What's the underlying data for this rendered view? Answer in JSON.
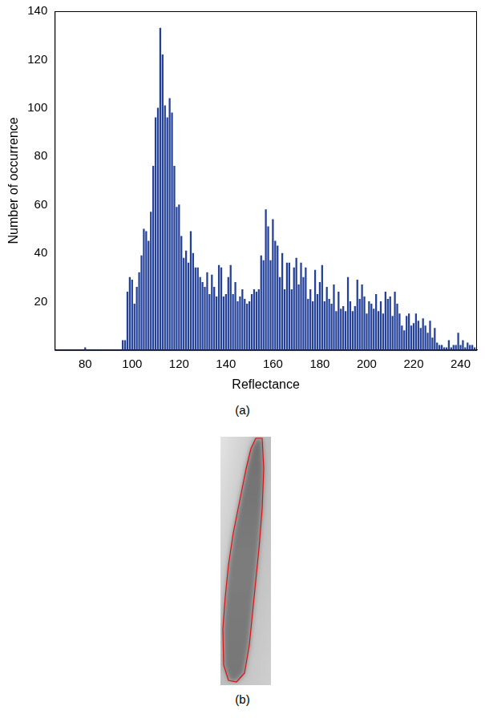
{
  "chart_data": {
    "type": "bar",
    "x_label": "Reflectance",
    "y_label": "Number of occurrence",
    "x": [
      67,
      68,
      69,
      70,
      71,
      72,
      73,
      74,
      75,
      76,
      77,
      78,
      79,
      80,
      81,
      82,
      83,
      84,
      85,
      86,
      87,
      88,
      89,
      90,
      91,
      92,
      93,
      94,
      95,
      96,
      97,
      98,
      99,
      100,
      101,
      102,
      103,
      104,
      105,
      106,
      107,
      108,
      109,
      110,
      111,
      112,
      113,
      114,
      115,
      116,
      117,
      118,
      119,
      120,
      121,
      122,
      123,
      124,
      125,
      126,
      127,
      128,
      129,
      130,
      131,
      132,
      133,
      134,
      135,
      136,
      137,
      138,
      139,
      140,
      141,
      142,
      143,
      144,
      145,
      146,
      147,
      148,
      149,
      150,
      151,
      152,
      153,
      154,
      155,
      156,
      157,
      158,
      159,
      160,
      161,
      162,
      163,
      164,
      165,
      166,
      167,
      168,
      169,
      170,
      171,
      172,
      173,
      174,
      175,
      176,
      177,
      178,
      179,
      180,
      181,
      182,
      183,
      184,
      185,
      186,
      187,
      188,
      189,
      190,
      191,
      192,
      193,
      194,
      195,
      196,
      197,
      198,
      199,
      200,
      201,
      202,
      203,
      204,
      205,
      206,
      207,
      208,
      209,
      210,
      211,
      212,
      213,
      214,
      215,
      216,
      217,
      218,
      219,
      220,
      221,
      222,
      223,
      224,
      225,
      226,
      227,
      228,
      229,
      230,
      231,
      232,
      233,
      234,
      235,
      236,
      237,
      238,
      239,
      240,
      241,
      242,
      243,
      244,
      245,
      246
    ],
    "values": [
      0,
      0,
      0,
      0,
      0,
      0,
      0,
      0,
      0,
      0,
      0,
      0,
      0,
      1,
      0,
      0,
      0,
      0,
      0,
      0,
      0,
      0,
      0,
      0,
      0,
      0,
      0,
      0,
      0,
      4,
      4,
      24,
      30,
      29,
      19,
      26,
      32,
      39,
      50,
      49,
      45,
      57,
      76,
      96,
      100,
      133,
      122,
      101,
      96,
      104,
      98,
      76,
      59,
      60,
      47,
      38,
      41,
      36,
      49,
      40,
      34,
      34,
      30,
      28,
      26,
      32,
      23,
      31,
      26,
      22,
      35,
      34,
      22,
      23,
      30,
      35,
      23,
      28,
      20,
      22,
      25,
      21,
      19,
      20,
      23,
      25,
      24,
      25,
      39,
      37,
      58,
      51,
      37,
      54,
      45,
      43,
      30,
      40,
      25,
      36,
      36,
      25,
      34,
      38,
      27,
      36,
      30,
      34,
      21,
      25,
      20,
      33,
      23,
      28,
      35,
      20,
      26,
      21,
      19,
      27,
      16,
      24,
      17,
      18,
      16,
      30,
      20,
      16,
      18,
      29,
      21,
      27,
      22,
      15,
      20,
      19,
      17,
      23,
      16,
      20,
      15,
      24,
      21,
      22,
      14,
      24,
      19,
      15,
      10,
      8,
      14,
      15,
      10,
      11,
      15,
      12,
      9,
      13,
      10,
      7,
      12,
      5,
      9,
      3,
      2,
      2,
      1,
      1,
      4,
      1,
      2,
      2,
      7,
      2,
      4,
      1,
      3,
      2,
      2,
      1
    ],
    "color": "#24419a",
    "xlim": [
      67,
      247
    ],
    "xticks": [
      80,
      100,
      120,
      140,
      160,
      180,
      200,
      220,
      240
    ],
    "ylim": [
      0,
      140
    ],
    "yticks": [
      20,
      40,
      60,
      80,
      100,
      120,
      140
    ],
    "grid": false
  },
  "panels": [
    {
      "label": "(a)"
    },
    {
      "label": "(b)"
    }
  ]
}
